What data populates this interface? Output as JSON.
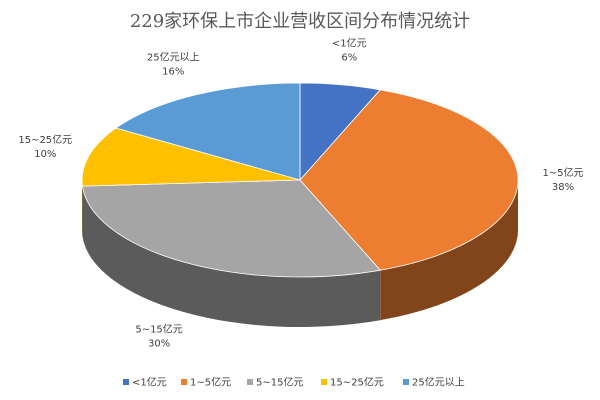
{
  "chart_data": {
    "type": "pie",
    "title": "229家环保上市企业营收区间分布情况统计",
    "categories": [
      "<1亿元",
      "1~5亿元",
      "5~15亿元",
      "15~25亿元",
      "25亿元以上"
    ],
    "values": [
      6,
      38,
      30,
      10,
      16
    ],
    "value_labels": [
      "6%",
      "38%",
      "30%",
      "10%",
      "16%"
    ],
    "colors": [
      "#4472c4",
      "#ed7d31",
      "#a5a5a5",
      "#ffc000",
      "#5b9bd5"
    ],
    "legend": "bottom"
  }
}
